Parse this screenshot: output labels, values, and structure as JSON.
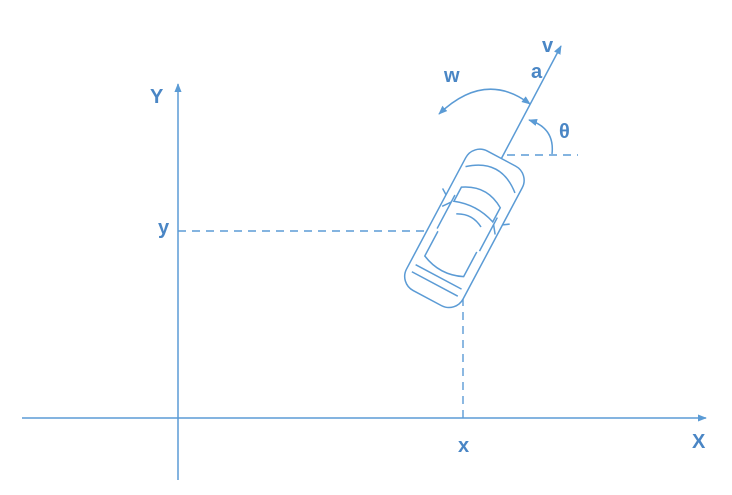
{
  "colors": {
    "line": "#5b9bd5",
    "label": "#4a86c5"
  },
  "labels": {
    "x_axis": "X",
    "y_axis": "Y",
    "x_coord": "x",
    "y_coord": "y",
    "angular_velocity": "w",
    "acceleration": "a",
    "velocity": "v",
    "heading_angle": "θ"
  },
  "icons": {
    "vehicle": "car-top-view-icon"
  }
}
